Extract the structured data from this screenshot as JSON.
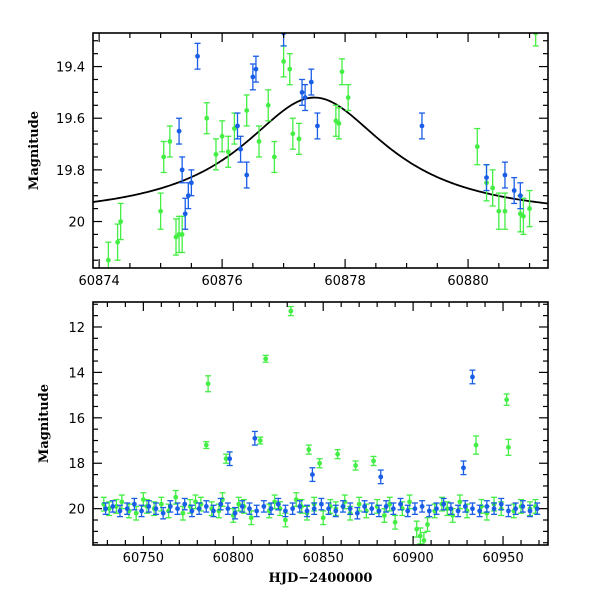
{
  "colors": {
    "green": "#44ee44",
    "blue": "#1a5ee8",
    "model": "#000000"
  },
  "chart_data": [
    {
      "type": "scatter",
      "title": "",
      "xlabel": "",
      "ylabel": "Magnitude",
      "xlim": [
        60873.9,
        60881.3
      ],
      "ylim": [
        20.18,
        19.27
      ],
      "y_inverted": true,
      "xticks": [
        60874,
        60876,
        60878,
        60880
      ],
      "xtick_labels": [
        "60874",
        "60876",
        "60878",
        "60880"
      ],
      "yticks": [
        19.4,
        19.6,
        19.8,
        20.0
      ],
      "ytick_labels": [
        "19.4",
        "19.6",
        "19.8",
        "20"
      ],
      "model_curve": {
        "type": "lorentzian",
        "peak_x": 60877.5,
        "peak_mag": 19.52,
        "baseline_mag": 19.99,
        "half_width": 1.45
      },
      "series": [
        {
          "name": "green",
          "color": "#44ee44",
          "x": [
            60874.15,
            60874.3,
            60874.35,
            60875.0,
            60875.05,
            60875.15,
            60875.25,
            60875.3,
            60875.35,
            60875.75,
            60875.9,
            60876.0,
            60876.1,
            60876.2,
            60876.4,
            60876.6,
            60876.75,
            60876.85,
            60877.0,
            60877.1,
            60877.15,
            60877.25,
            60877.85,
            60877.9,
            60877.95,
            60878.05,
            60880.15,
            60880.3,
            60880.4,
            60880.5,
            60880.6,
            60880.85,
            60880.9,
            60881.0,
            60881.1
          ],
          "y": [
            20.15,
            20.08,
            20.0,
            19.96,
            19.75,
            19.69,
            20.06,
            20.05,
            20.05,
            19.6,
            19.74,
            19.67,
            19.73,
            19.64,
            19.57,
            19.69,
            19.55,
            19.75,
            19.38,
            19.41,
            19.66,
            19.68,
            19.61,
            19.62,
            19.42,
            19.52,
            19.71,
            19.85,
            19.87,
            19.96,
            19.96,
            19.97,
            19.98,
            19.95,
            19.27
          ],
          "err": [
            0.07,
            0.07,
            0.07,
            0.07,
            0.06,
            0.06,
            0.07,
            0.07,
            0.07,
            0.06,
            0.06,
            0.06,
            0.06,
            0.06,
            0.06,
            0.06,
            0.06,
            0.06,
            0.06,
            0.06,
            0.06,
            0.06,
            0.06,
            0.06,
            0.05,
            0.05,
            0.07,
            0.07,
            0.07,
            0.07,
            0.07,
            0.07,
            0.07,
            0.07,
            0.05
          ]
        },
        {
          "name": "blue",
          "color": "#1a5ee8",
          "x": [
            60875.3,
            60875.35,
            60875.4,
            60875.45,
            60875.5,
            60875.6,
            60876.25,
            60876.3,
            60876.4,
            60876.5,
            60876.55,
            60877.0,
            60877.3,
            60877.35,
            60877.45,
            60877.55,
            60879.25,
            60880.3,
            60880.6,
            60880.75,
            60880.85
          ],
          "y": [
            19.65,
            19.8,
            19.97,
            19.9,
            19.85,
            19.36,
            19.63,
            19.72,
            19.82,
            19.44,
            19.41,
            19.27,
            19.5,
            19.52,
            19.46,
            19.63,
            19.63,
            19.83,
            19.82,
            19.88,
            19.9
          ],
          "err": [
            0.05,
            0.05,
            0.06,
            0.05,
            0.05,
            0.05,
            0.05,
            0.05,
            0.05,
            0.05,
            0.05,
            0.05,
            0.05,
            0.05,
            0.05,
            0.05,
            0.05,
            0.05,
            0.05,
            0.05,
            0.05
          ]
        }
      ]
    },
    {
      "type": "scatter",
      "title": "",
      "xlabel": "HJD−2400000",
      "ylabel": "Magnitude",
      "xlim": [
        60722,
        60975
      ],
      "ylim": [
        21.6,
        10.9
      ],
      "y_inverted": true,
      "xticks": [
        60750,
        60800,
        60850,
        60900,
        60950
      ],
      "xtick_labels": [
        "60750",
        "60800",
        "60850",
        "60900",
        "60950"
      ],
      "yticks": [
        12,
        14,
        16,
        18,
        20
      ],
      "ytick_labels": [
        "12",
        "14",
        "16",
        "18",
        "20"
      ],
      "series": [
        {
          "name": "green (outliers)",
          "color": "#44ee44",
          "x": [
            60785,
            60786,
            60796,
            60815,
            60818,
            60832,
            60842,
            60848,
            60858,
            60868,
            60878,
            60935,
            60952,
            60953
          ],
          "y": [
            17.2,
            14.5,
            17.8,
            17.0,
            13.4,
            11.3,
            17.4,
            18.0,
            17.6,
            18.1,
            17.9,
            17.2,
            15.2,
            17.3
          ],
          "err": [
            0.15,
            0.35,
            0.2,
            0.15,
            0.15,
            0.2,
            0.2,
            0.2,
            0.2,
            0.2,
            0.2,
            0.4,
            0.25,
            0.35
          ]
        },
        {
          "name": "blue (outliers)",
          "color": "#1a5ee8",
          "x": [
            60798,
            60812,
            60844,
            60882,
            60928,
            60933
          ],
          "y": [
            17.8,
            16.9,
            18.5,
            18.6,
            18.2,
            14.2
          ],
          "err": [
            0.3,
            0.3,
            0.3,
            0.3,
            0.3,
            0.3
          ]
        },
        {
          "name": "green (baseline)",
          "color": "#44ee44",
          "x": [
            60728,
            60731,
            60735,
            60738,
            60742,
            60746,
            60750,
            60752,
            60756,
            60760,
            60764,
            60768,
            60772,
            60776,
            60779,
            60782,
            60788,
            60792,
            60794,
            60800,
            60803,
            60806,
            60810,
            60820,
            60823,
            60826,
            60829,
            60835,
            60838,
            60841,
            60845,
            60850,
            60854,
            60857,
            60862,
            60865,
            60870,
            60874,
            60880,
            60884,
            60887,
            60890,
            60894,
            60898,
            60902,
            60904,
            60906,
            60908,
            60912,
            60916,
            60919,
            60922,
            60926,
            60930,
            60938,
            60941,
            60945,
            60949,
            60956,
            60960,
            60965,
            60968
          ],
          "y": [
            19.8,
            20.0,
            19.9,
            19.7,
            20.1,
            20.2,
            19.6,
            19.9,
            20.0,
            19.8,
            20.1,
            19.5,
            20.2,
            19.9,
            19.7,
            19.8,
            20.0,
            20.1,
            19.6,
            20.3,
            19.8,
            19.9,
            20.4,
            20.1,
            19.7,
            20.0,
            20.5,
            19.6,
            19.9,
            20.2,
            19.8,
            20.4,
            19.9,
            20.0,
            19.7,
            20.2,
            19.8,
            20.1,
            19.9,
            20.3,
            19.8,
            20.6,
            20.0,
            19.7,
            20.9,
            21.2,
            21.4,
            20.7,
            20.1,
            19.8,
            20.0,
            20.3,
            19.7,
            20.1,
            19.9,
            20.2,
            19.8,
            20.0,
            20.1,
            19.9,
            20.0,
            19.9
          ],
          "err": [
            0.3,
            0.3,
            0.3,
            0.3,
            0.3,
            0.3,
            0.3,
            0.3,
            0.3,
            0.3,
            0.3,
            0.3,
            0.3,
            0.3,
            0.3,
            0.3,
            0.3,
            0.3,
            0.3,
            0.3,
            0.3,
            0.3,
            0.3,
            0.3,
            0.3,
            0.3,
            0.3,
            0.3,
            0.3,
            0.3,
            0.3,
            0.3,
            0.3,
            0.3,
            0.3,
            0.3,
            0.3,
            0.3,
            0.3,
            0.3,
            0.3,
            0.3,
            0.3,
            0.3,
            0.35,
            0.35,
            0.35,
            0.3,
            0.3,
            0.3,
            0.3,
            0.3,
            0.3,
            0.3,
            0.3,
            0.3,
            0.3,
            0.3,
            0.3,
            0.3,
            0.3,
            0.3
          ]
        },
        {
          "name": "blue (baseline)",
          "color": "#1a5ee8",
          "x": [
            60729,
            60733,
            60737,
            60741,
            60745,
            60749,
            60753,
            60757,
            60761,
            60765,
            60769,
            60773,
            60777,
            60781,
            60785,
            60789,
            60793,
            60797,
            60801,
            60805,
            60809,
            60813,
            60817,
            60821,
            60825,
            60829,
            60833,
            60837,
            60841,
            60845,
            60849,
            60853,
            60857,
            60861,
            60865,
            60869,
            60873,
            60877,
            60881,
            60885,
            60889,
            60893,
            60897,
            60901,
            60905,
            60909,
            60913,
            60917,
            60921,
            60925,
            60929,
            60933,
            60937,
            60941,
            60945,
            60949,
            60953,
            60957,
            60961,
            60965,
            60969
          ],
          "y": [
            20.0,
            19.9,
            20.1,
            20.0,
            19.8,
            20.1,
            19.9,
            20.0,
            20.2,
            19.9,
            20.0,
            19.8,
            20.1,
            20.0,
            19.9,
            20.1,
            19.8,
            20.0,
            20.2,
            19.9,
            20.0,
            20.1,
            19.9,
            20.0,
            19.8,
            20.1,
            20.0,
            19.9,
            20.1,
            20.0,
            19.8,
            20.0,
            20.1,
            19.9,
            20.0,
            20.2,
            19.9,
            20.0,
            20.1,
            19.9,
            20.0,
            19.8,
            20.1,
            20.0,
            19.9,
            20.1,
            20.0,
            19.8,
            20.0,
            20.1,
            19.9,
            20.0,
            20.1,
            19.9,
            20.0,
            19.8,
            20.1,
            20.0,
            19.9,
            20.1,
            20.0
          ],
          "err": [
            0.25,
            0.25,
            0.25,
            0.25,
            0.25,
            0.25,
            0.25,
            0.25,
            0.25,
            0.25,
            0.25,
            0.25,
            0.25,
            0.25,
            0.25,
            0.25,
            0.25,
            0.25,
            0.25,
            0.25,
            0.25,
            0.25,
            0.25,
            0.25,
            0.25,
            0.25,
            0.25,
            0.25,
            0.25,
            0.25,
            0.25,
            0.25,
            0.25,
            0.25,
            0.25,
            0.25,
            0.25,
            0.25,
            0.25,
            0.25,
            0.25,
            0.25,
            0.25,
            0.25,
            0.25,
            0.25,
            0.25,
            0.25,
            0.25,
            0.25,
            0.25,
            0.25,
            0.25,
            0.25,
            0.25,
            0.25,
            0.25,
            0.25,
            0.25,
            0.25,
            0.25
          ]
        }
      ]
    }
  ]
}
